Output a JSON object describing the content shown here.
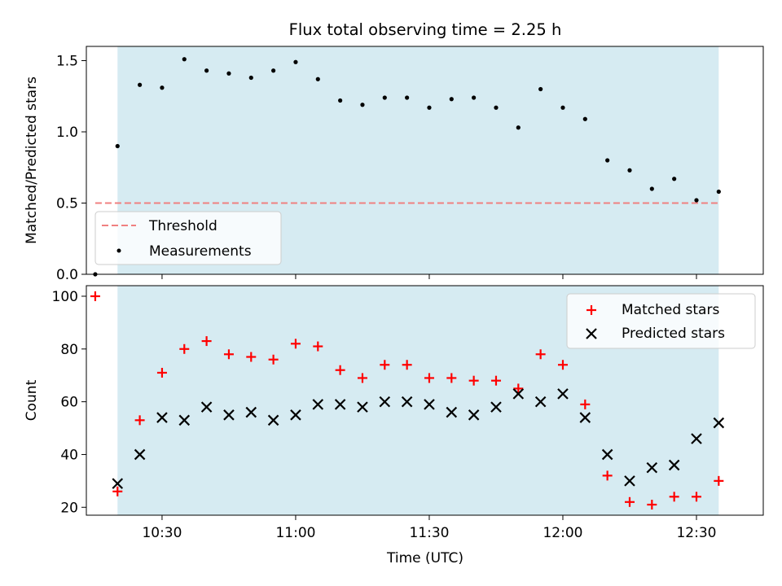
{
  "figure": {
    "title": "Flux total observing time = 2.25 h",
    "xlabel": "Time (UTC)",
    "x_ticks": [
      "10:30",
      "11:00",
      "11:30",
      "12:00",
      "12:30"
    ]
  },
  "colors": {
    "shade": "#add8e6",
    "threshold": "#f08080",
    "measurement": "#000000",
    "matched": "#ff0000",
    "predicted": "#000000"
  },
  "chart_data": [
    {
      "type": "scatter",
      "ylabel": "Matched/Predicted stars",
      "xlim": [
        "10:13",
        "12:45"
      ],
      "ylim": [
        0,
        1.6
      ],
      "y_ticks": [
        "0.0",
        "0.5",
        "1.0",
        "1.5"
      ],
      "shaded_span": [
        "10:20",
        "12:35"
      ],
      "threshold": {
        "name": "Threshold",
        "value": 0.5,
        "x_start": "10:15",
        "x_end": "12:35"
      },
      "legend_position": "lower-left",
      "series": [
        {
          "name": "Measurements",
          "x": [
            "10:15",
            "10:20",
            "10:25",
            "10:30",
            "10:35",
            "10:40",
            "10:45",
            "10:50",
            "10:55",
            "11:00",
            "11:05",
            "11:10",
            "11:15",
            "11:20",
            "11:25",
            "11:30",
            "11:35",
            "11:40",
            "11:45",
            "11:50",
            "11:55",
            "12:00",
            "12:05",
            "12:10",
            "12:15",
            "12:20",
            "12:25",
            "12:30",
            "12:35"
          ],
          "values": [
            0.0,
            0.9,
            1.33,
            1.31,
            1.51,
            1.43,
            1.41,
            1.38,
            1.43,
            1.49,
            1.37,
            1.22,
            1.19,
            1.24,
            1.24,
            1.17,
            1.23,
            1.24,
            1.17,
            1.03,
            1.3,
            1.17,
            1.09,
            0.8,
            0.73,
            0.6,
            0.67,
            0.52,
            0.58
          ]
        }
      ]
    },
    {
      "type": "scatter",
      "ylabel": "Count",
      "xlabel": "Time (UTC)",
      "xlim": [
        "10:13",
        "12:45"
      ],
      "ylim": [
        17,
        104
      ],
      "y_ticks": [
        "20",
        "40",
        "60",
        "80",
        "100"
      ],
      "shaded_span": [
        "10:20",
        "12:35"
      ],
      "legend_position": "upper-right",
      "series": [
        {
          "name": "Matched stars",
          "x": [
            "10:15",
            "10:20",
            "10:25",
            "10:30",
            "10:35",
            "10:40",
            "10:45",
            "10:50",
            "10:55",
            "11:00",
            "11:05",
            "11:10",
            "11:15",
            "11:20",
            "11:25",
            "11:30",
            "11:35",
            "11:40",
            "11:45",
            "11:50",
            "11:55",
            "12:00",
            "12:05",
            "12:10",
            "12:15",
            "12:20",
            "12:25",
            "12:30",
            "12:35"
          ],
          "values": [
            100,
            26,
            53,
            71,
            80,
            83,
            78,
            77,
            76,
            82,
            81,
            72,
            69,
            74,
            74,
            69,
            69,
            68,
            68,
            65,
            78,
            74,
            59,
            32,
            22,
            21,
            24,
            24,
            30
          ]
        },
        {
          "name": "Predicted stars",
          "x": [
            "10:20",
            "10:25",
            "10:30",
            "10:35",
            "10:40",
            "10:45",
            "10:50",
            "10:55",
            "11:00",
            "11:05",
            "11:10",
            "11:15",
            "11:20",
            "11:25",
            "11:30",
            "11:35",
            "11:40",
            "11:45",
            "11:50",
            "11:55",
            "12:00",
            "12:05",
            "12:10",
            "12:15",
            "12:20",
            "12:25",
            "12:30",
            "12:35"
          ],
          "values": [
            29,
            40,
            54,
            53,
            58,
            55,
            56,
            53,
            55,
            59,
            59,
            58,
            60,
            60,
            59,
            56,
            55,
            58,
            63,
            60,
            63,
            54,
            40,
            30,
            35,
            36,
            46,
            52
          ]
        }
      ]
    }
  ]
}
